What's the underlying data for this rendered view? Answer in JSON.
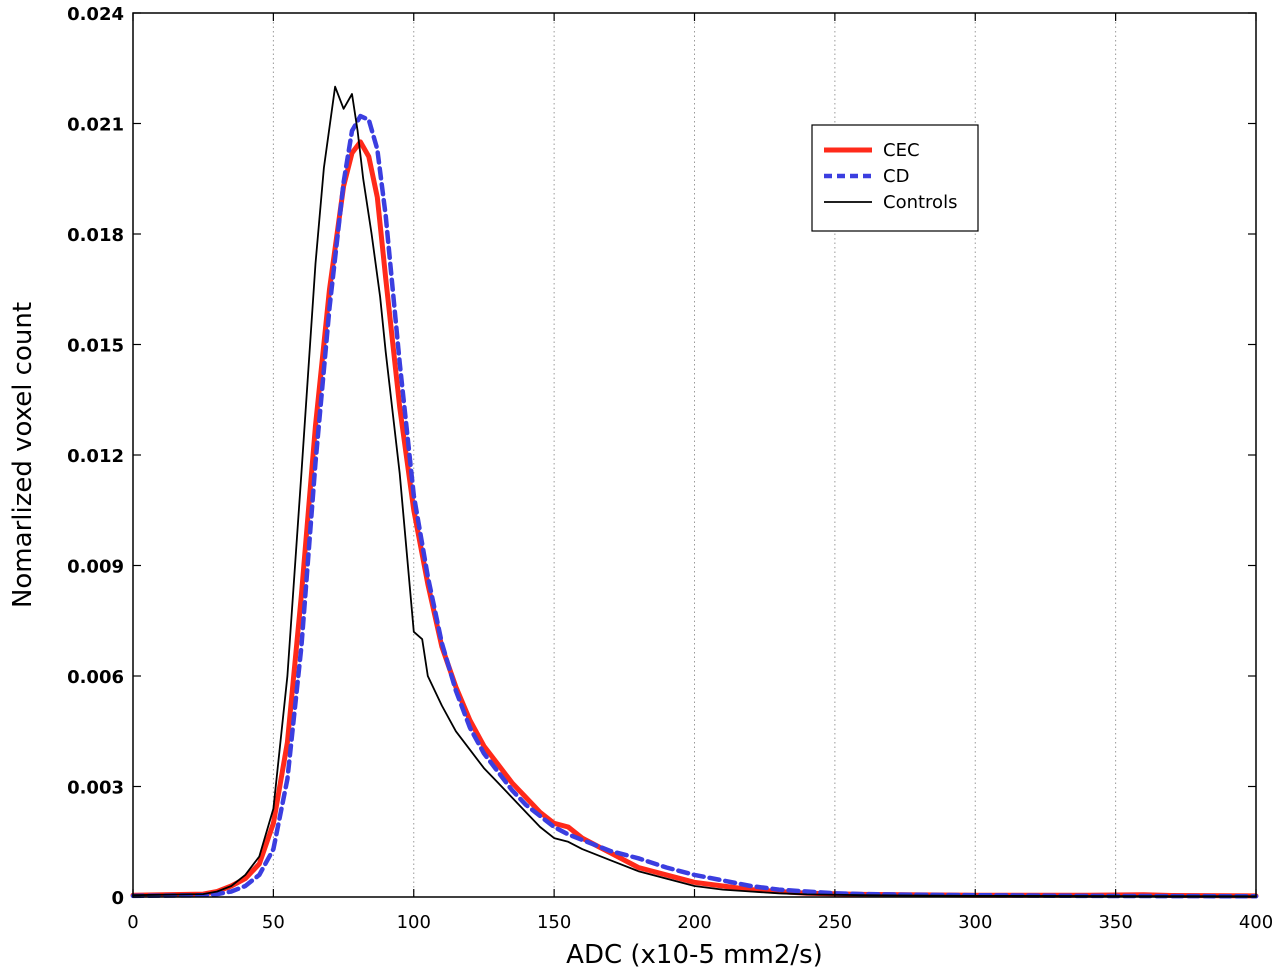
{
  "chart_data": {
    "type": "line",
    "xlabel": "ADC (x10-5 mm2/s)",
    "ylabel": "Nomarlized voxel count",
    "xlim": [
      0,
      400
    ],
    "ylim": [
      0,
      0.024
    ],
    "xticks": [
      0,
      50,
      100,
      150,
      200,
      250,
      300,
      350,
      400
    ],
    "xtick_labels": [
      "0",
      "50",
      "100",
      "150",
      "200",
      "250",
      "300",
      "350",
      "400"
    ],
    "yticks": [
      0,
      0.003,
      0.006,
      0.009,
      0.012,
      0.015,
      0.018,
      0.021,
      0.024
    ],
    "ytick_labels": [
      "0",
      "0.003",
      "0.006",
      "0.009",
      "0.012",
      "0.015",
      "0.018",
      "0.021",
      "0.024"
    ],
    "grid": "vertical dotted",
    "legend_position": "top-right",
    "series": [
      {
        "name": "CEC",
        "color": "#ff2a1a",
        "style": "solid-thick",
        "x": [
          0,
          25,
          30,
          35,
          40,
          45,
          50,
          55,
          60,
          65,
          70,
          75,
          78,
          81,
          84,
          87,
          90,
          95,
          100,
          105,
          110,
          115,
          120,
          125,
          130,
          135,
          140,
          145,
          150,
          155,
          160,
          170,
          180,
          190,
          200,
          210,
          220,
          230,
          240,
          260,
          300,
          340,
          360,
          370,
          400
        ],
        "y": [
          5e-05,
          8e-05,
          0.00015,
          0.0003,
          0.0005,
          0.0009,
          0.002,
          0.0042,
          0.0082,
          0.0128,
          0.0165,
          0.0193,
          0.0202,
          0.0205,
          0.0201,
          0.019,
          0.0168,
          0.0133,
          0.0105,
          0.0085,
          0.0068,
          0.0057,
          0.0048,
          0.0041,
          0.0036,
          0.0031,
          0.0027,
          0.0023,
          0.002,
          0.0019,
          0.0016,
          0.0012,
          0.0008,
          0.0006,
          0.0004,
          0.0003,
          0.0002,
          0.00015,
          0.0001,
          7e-05,
          5e-05,
          5e-05,
          6e-05,
          4e-05,
          3e-05
        ]
      },
      {
        "name": "CD",
        "color": "#3b3ee0",
        "style": "dashed",
        "x": [
          0,
          25,
          30,
          35,
          40,
          45,
          50,
          55,
          60,
          65,
          70,
          75,
          78,
          81,
          84,
          87,
          90,
          95,
          100,
          105,
          110,
          115,
          120,
          125,
          130,
          135,
          140,
          145,
          150,
          155,
          160,
          170,
          180,
          190,
          200,
          210,
          220,
          230,
          240,
          250,
          260,
          280,
          300,
          340,
          400
        ],
        "y": [
          3e-05,
          5e-05,
          8e-05,
          0.00015,
          0.0003,
          0.0006,
          0.0013,
          0.0032,
          0.0068,
          0.0118,
          0.016,
          0.0194,
          0.0208,
          0.0212,
          0.0211,
          0.0203,
          0.0185,
          0.0145,
          0.0109,
          0.0087,
          0.0069,
          0.0056,
          0.0046,
          0.0039,
          0.0034,
          0.0029,
          0.0025,
          0.0022,
          0.0019,
          0.0017,
          0.00155,
          0.00125,
          0.00105,
          0.0008,
          0.0006,
          0.00045,
          0.0003,
          0.0002,
          0.00015,
          0.0001,
          8e-05,
          6e-05,
          5e-05,
          3e-05,
          2e-05
        ]
      },
      {
        "name": "Controls",
        "color": "#000000",
        "style": "solid-thin",
        "x": [
          0,
          25,
          30,
          35,
          40,
          45,
          50,
          55,
          60,
          65,
          68,
          72,
          75,
          78,
          80,
          82,
          85,
          88,
          90,
          95,
          100,
          103,
          105,
          110,
          115,
          120,
          125,
          130,
          135,
          140,
          145,
          150,
          155,
          160,
          170,
          180,
          190,
          200,
          210,
          220,
          230,
          240,
          260,
          300,
          400
        ],
        "y": [
          5e-05,
          8e-05,
          0.00015,
          0.0003,
          0.0006,
          0.0011,
          0.0024,
          0.006,
          0.0115,
          0.0172,
          0.0198,
          0.022,
          0.0214,
          0.0218,
          0.0208,
          0.0195,
          0.018,
          0.0163,
          0.0148,
          0.0115,
          0.0072,
          0.007,
          0.006,
          0.0052,
          0.0045,
          0.004,
          0.0035,
          0.0031,
          0.0027,
          0.0023,
          0.0019,
          0.0016,
          0.0015,
          0.0013,
          0.001,
          0.0007,
          0.0005,
          0.0003,
          0.0002,
          0.00015,
          0.0001,
          7e-05,
          5e-05,
          3e-05,
          2e-05
        ]
      }
    ]
  }
}
